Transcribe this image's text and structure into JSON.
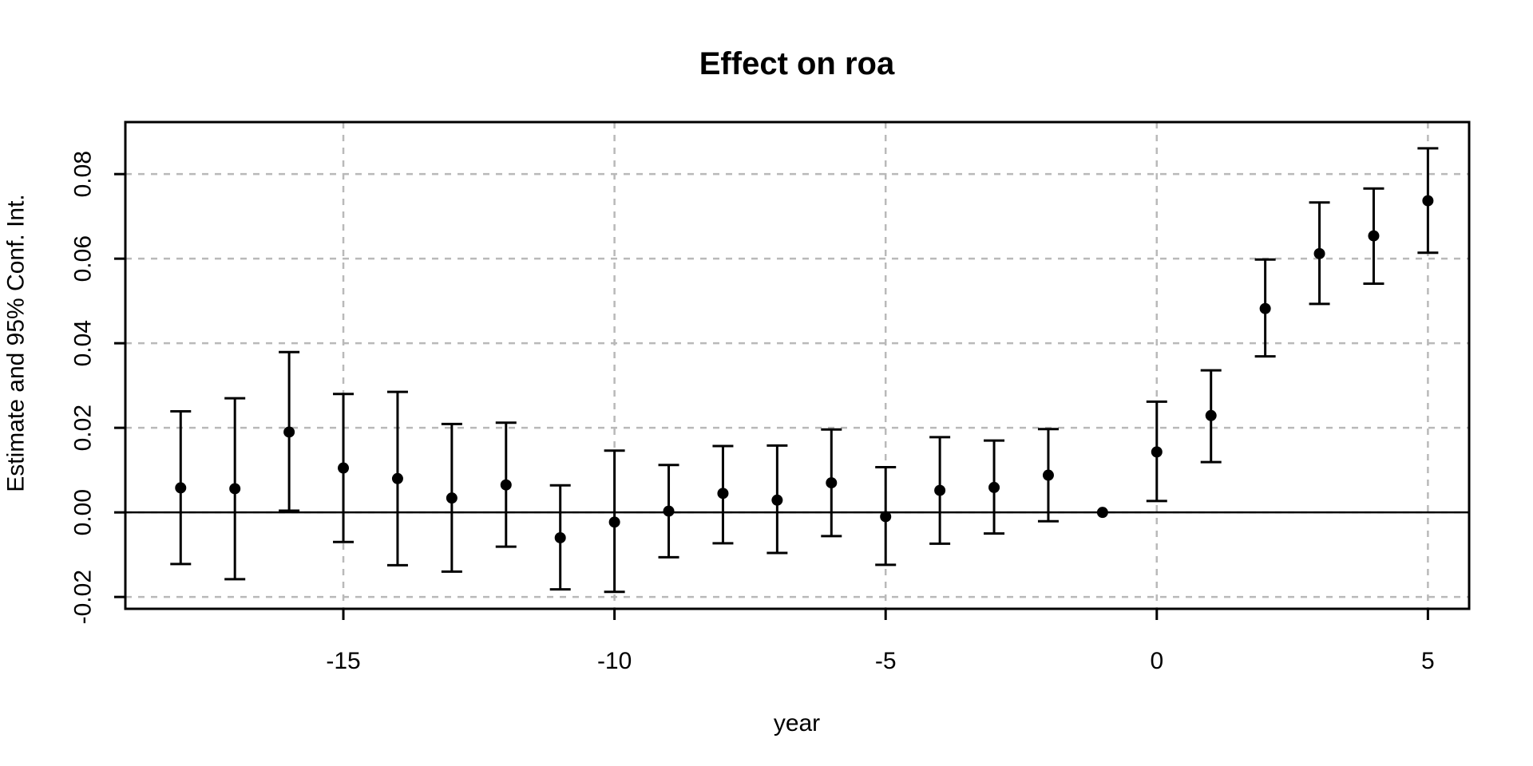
{
  "chart_data": {
    "type": "scatter",
    "title": "Effect on roa",
    "xlabel": "year",
    "ylabel": "Estimate and 95% Conf. Int.",
    "x": [
      -18,
      -17,
      -16,
      -15,
      -14,
      -13,
      -12,
      -11,
      -10,
      -9,
      -8,
      -7,
      -6,
      -5,
      -4,
      -3,
      -2,
      -1,
      0,
      1,
      2,
      3,
      4,
      5
    ],
    "series": [
      {
        "name": "estimate",
        "values": [
          0.0058,
          0.0056,
          0.019,
          0.0105,
          0.008,
          0.0034,
          0.0065,
          -0.006,
          -0.0023,
          0.0003,
          0.0045,
          0.0029,
          0.007,
          -0.001,
          0.0052,
          0.0059,
          0.0088,
          0.0,
          0.0143,
          0.0229,
          0.0482,
          0.0612,
          0.0654,
          0.0737
        ]
      },
      {
        "name": "ci_lower_95",
        "values": [
          -0.0122,
          -0.0158,
          0.0004,
          -0.007,
          -0.0125,
          -0.014,
          -0.0081,
          -0.0182,
          -0.0188,
          -0.0106,
          -0.0073,
          -0.0096,
          -0.0056,
          -0.0124,
          -0.0074,
          -0.005,
          -0.0021,
          0.0,
          0.0027,
          0.0119,
          0.0369,
          0.0493,
          0.0541,
          0.0614
        ]
      },
      {
        "name": "ci_upper_95",
        "values": [
          0.0239,
          0.027,
          0.0379,
          0.028,
          0.0285,
          0.0209,
          0.0212,
          0.0064,
          0.0146,
          0.0112,
          0.0157,
          0.0158,
          0.0196,
          0.0107,
          0.0178,
          0.017,
          0.0197,
          0.0,
          0.0262,
          0.0336,
          0.0598,
          0.0733,
          0.0766,
          0.0861
        ]
      }
    ],
    "reference_x": -1,
    "x_ticks": [
      -15,
      -10,
      -5,
      0,
      5
    ],
    "x_tick_labels": [
      "-15",
      "-10",
      "-5",
      "0",
      "5"
    ],
    "y_ticks": [
      -0.02,
      0,
      0.02,
      0.04,
      0.06,
      0.08
    ],
    "y_tick_labels": [
      "-0.02",
      "0.00",
      "0.02",
      "0.04",
      "0.06",
      "0.08"
    ],
    "xlim": [
      -19.02,
      5.76
    ],
    "ylim": [
      -0.0228,
      0.0923
    ],
    "grid": "dashed",
    "zero_line": true,
    "legend": "none",
    "colors": {
      "point": "#000000",
      "error_bar": "#000000",
      "grid": "#b9b9b9",
      "axis": "#000000",
      "background": "#ffffff"
    }
  }
}
